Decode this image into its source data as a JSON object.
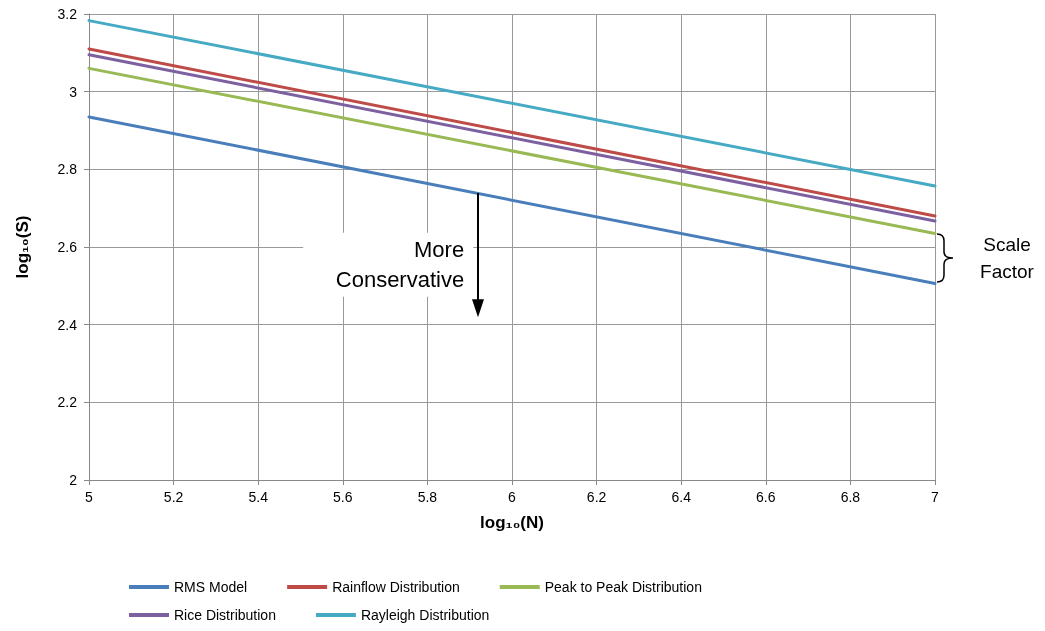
{
  "chart_data": {
    "type": "line",
    "xlabel": "log₁₀(N)",
    "ylabel": "log₁₀(S)",
    "x": [
      5,
      7
    ],
    "series": [
      {
        "name": "RMS Model",
        "color": "#4a7ebb",
        "values": [
          2.935,
          2.506
        ]
      },
      {
        "name": "Rainflow Distribution",
        "color": "#be4b48",
        "values": [
          3.11,
          2.68
        ]
      },
      {
        "name": "Peak to Peak Distribution",
        "color": "#98b954",
        "values": [
          3.06,
          2.635
        ]
      },
      {
        "name": "Rice Distribution",
        "color": "#7d60a0",
        "values": [
          3.095,
          2.667
        ]
      },
      {
        "name": "Rayleigh Distribution",
        "color": "#46aac5",
        "values": [
          3.183,
          2.757
        ]
      }
    ],
    "xlim": [
      5,
      7
    ],
    "xticks": [
      5,
      5.2,
      5.4,
      5.6,
      5.8,
      6,
      6.2,
      6.4,
      6.6,
      6.8,
      7
    ],
    "ylim": [
      2,
      3.2
    ],
    "yticks": [
      2,
      2.2,
      2.4,
      2.6,
      2.8,
      3,
      3.2
    ],
    "grid": true,
    "legend": "bottom",
    "marker": "none",
    "line_style": "solid",
    "annotations": [
      {
        "text": "More\nConservative",
        "x": 5.92,
        "y": 2.74
      },
      "Scale\nFactor"
    ]
  }
}
